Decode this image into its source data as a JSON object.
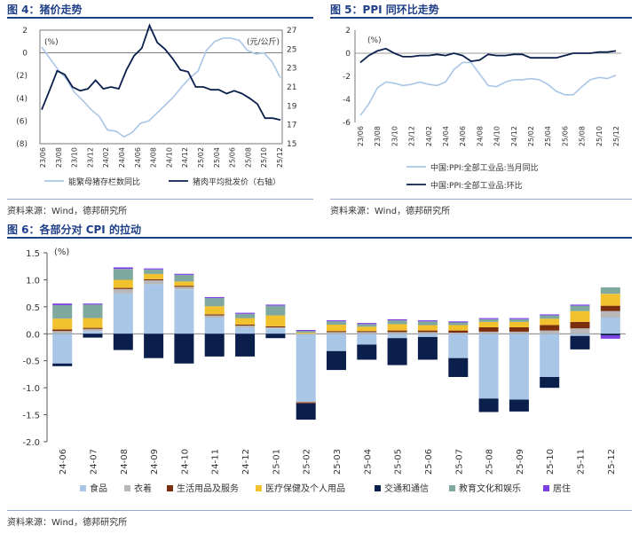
{
  "figure4": {
    "title": "图 4：猪价走势",
    "source": "资料来源：Wind，德邦研究所",
    "chart_data": {
      "type": "line",
      "x_labels": [
        "23/06",
        "23/08",
        "23/10",
        "23/12",
        "24/02",
        "24/04",
        "24/06",
        "24/08",
        "24/10",
        "24/12",
        "25/02",
        "25/04",
        "25/06",
        "25/08",
        "25/10",
        "25/12"
      ],
      "left_axis": {
        "unit": "(%)",
        "ylim": [
          -8,
          2
        ],
        "ticks": [
          2,
          0,
          -2,
          -4,
          -6,
          -8
        ],
        "tick_labels": [
          "2",
          "0",
          "(2)",
          "(4)",
          "(6)",
          "(8)"
        ]
      },
      "right_axis": {
        "unit": "(元/公斤)",
        "ylim": [
          15,
          27
        ],
        "ticks": [
          27,
          25,
          23,
          21,
          19,
          17,
          15
        ]
      },
      "series": [
        {
          "name": "能繁母猪存栏数同比",
          "axis": "left",
          "color": "#a9c6e6",
          "values": [
            0.5,
            -0.5,
            -1.5,
            -2.3,
            -3.5,
            -4.2,
            -5.0,
            -5.6,
            -6.8,
            -6.9,
            -7.4,
            -7.0,
            -6.2,
            -6.0,
            -5.3,
            -4.6,
            -3.9,
            -3.0,
            -2.2,
            -1.6,
            0.2,
            1.0,
            1.3,
            1.3,
            1.1,
            0.2,
            -0.1,
            0.0,
            -0.8,
            -2.2
          ]
        },
        {
          "name": "猪肉平均批发价（右轴）",
          "axis": "right",
          "color": "#0b1f4d",
          "values": [
            18.6,
            20.6,
            22.7,
            22.3,
            21.0,
            20.6,
            20.8,
            21.7,
            20.8,
            21.0,
            20.8,
            22.8,
            24.3,
            25.1,
            27.5,
            25.7,
            25.0,
            24.0,
            22.8,
            22.6,
            21.0,
            21.0,
            20.7,
            20.7,
            20.3,
            20.6,
            20.3,
            19.8,
            19.2,
            17.7,
            17.7,
            17.5
          ]
        }
      ]
    }
  },
  "figure5": {
    "title": "图 5：PPI 同环比走势",
    "source": "资料来源：Wind，德邦研究所",
    "chart_data": {
      "type": "line",
      "x_labels": [
        "23/06",
        "23/08",
        "23/10",
        "23/12",
        "24/02",
        "24/04",
        "24/06",
        "24/08",
        "24/10",
        "24/12",
        "25/02",
        "25/04",
        "25/06",
        "25/08",
        "25/10",
        "25/12"
      ],
      "axis": {
        "unit": "(%)",
        "ylim": [
          -6,
          2
        ],
        "ticks": [
          2,
          0,
          -2,
          -4,
          -6
        ]
      },
      "series": [
        {
          "name": "中国:PPI:全部工业品:当月同比",
          "color": "#a9c6e6",
          "values": [
            -5.4,
            -4.4,
            -3.0,
            -2.5,
            -2.6,
            -2.8,
            -2.7,
            -2.5,
            -2.7,
            -2.8,
            -2.5,
            -1.4,
            -0.8,
            -0.8,
            -1.8,
            -2.8,
            -2.9,
            -2.5,
            -2.3,
            -2.3,
            -2.2,
            -2.3,
            -2.7,
            -3.3,
            -3.6,
            -3.6,
            -2.9,
            -2.3,
            -2.1,
            -2.2,
            -1.9
          ]
        },
        {
          "name": "中国:PPI:全部工业品:环比",
          "color": "#0b1f4d",
          "values": [
            -0.8,
            -0.2,
            0.2,
            0.4,
            0.0,
            -0.3,
            -0.3,
            -0.2,
            -0.2,
            -0.1,
            -0.2,
            0.0,
            -0.2,
            -0.7,
            -0.6,
            -0.1,
            -0.2,
            -0.2,
            -0.1,
            -0.1,
            -0.4,
            -0.4,
            -0.4,
            -0.4,
            -0.2,
            0.0,
            0.0,
            0.0,
            0.1,
            0.1,
            0.2
          ]
        }
      ]
    }
  },
  "figure6": {
    "title": "图 6：各部分对 CPI 的拉动",
    "source": "资料来源：Wind，德邦研究所",
    "chart_data": {
      "type": "bar",
      "stacked": true,
      "unit": "(%)",
      "ylim": [
        -2.0,
        1.5
      ],
      "ticks": [
        1.5,
        1.0,
        0.5,
        0.0,
        -0.5,
        -1.0,
        -1.5,
        -2.0
      ],
      "tick_labels": [
        "1.5",
        "1.0",
        "0.5",
        "0.0",
        "-0.5",
        "-1.0",
        "-1.5",
        "-2.0"
      ],
      "categories": [
        "24-06",
        "24-07",
        "24-08",
        "24-09",
        "24-10",
        "24-11",
        "24-12",
        "25-01",
        "25-02",
        "25-03",
        "25-04",
        "25-05",
        "25-06",
        "25-07",
        "25-08",
        "25-09",
        "25-10",
        "25-11",
        "25-12"
      ],
      "series": [
        {
          "name": "食品",
          "color": "#a9c6e6",
          "values": [
            -0.55,
            0.05,
            0.75,
            0.92,
            0.82,
            0.3,
            0.12,
            0.1,
            -1.25,
            -0.32,
            -0.2,
            -0.08,
            -0.06,
            -0.45,
            -1.2,
            -1.22,
            -0.8,
            -0.04,
            0.3
          ]
        },
        {
          "name": "衣着",
          "color": "#b8b8b8",
          "values": [
            0.05,
            0.04,
            0.08,
            0.07,
            0.05,
            0.04,
            0.03,
            0.02,
            -0.02,
            0.03,
            0.03,
            0.03,
            0.03,
            0.02,
            0.04,
            0.04,
            0.06,
            0.1,
            0.12
          ]
        },
        {
          "name": "生活用品及服务",
          "color": "#7a2e0d",
          "values": [
            0.03,
            0.02,
            0.02,
            0.02,
            0.02,
            0.02,
            0.02,
            0.02,
            -0.02,
            0.02,
            0.02,
            0.03,
            0.03,
            0.04,
            0.08,
            0.08,
            0.1,
            0.12,
            0.1
          ]
        },
        {
          "name": "医疗保健及个人用品",
          "color": "#f2c12e",
          "values": [
            0.2,
            0.18,
            0.15,
            0.1,
            0.08,
            0.15,
            0.12,
            0.2,
            0.02,
            0.12,
            0.08,
            0.12,
            0.1,
            0.1,
            0.1,
            0.1,
            0.12,
            0.2,
            0.22
          ]
        },
        {
          "name": "交通和通信",
          "color": "#0b1f4d",
          "values": [
            -0.05,
            -0.07,
            -0.3,
            -0.45,
            -0.55,
            -0.42,
            -0.42,
            -0.08,
            -0.3,
            -0.35,
            -0.28,
            -0.5,
            -0.42,
            -0.35,
            -0.25,
            -0.22,
            -0.2,
            -0.25,
            -0.03
          ]
        },
        {
          "name": "教育文化和娱乐",
          "color": "#7fa89f",
          "values": [
            0.25,
            0.25,
            0.2,
            0.08,
            0.12,
            0.15,
            0.08,
            0.18,
            0.03,
            0.06,
            0.05,
            0.07,
            0.07,
            0.05,
            0.05,
            0.05,
            0.06,
            0.1,
            0.12
          ]
        },
        {
          "name": "居住",
          "color": "#7b3fe4",
          "values": [
            0.03,
            0.02,
            0.03,
            0.02,
            0.02,
            0.02,
            0.02,
            0.02,
            0.02,
            0.02,
            0.02,
            0.02,
            0.02,
            0.02,
            0.02,
            0.02,
            0.02,
            0.02,
            -0.06
          ]
        }
      ]
    }
  }
}
